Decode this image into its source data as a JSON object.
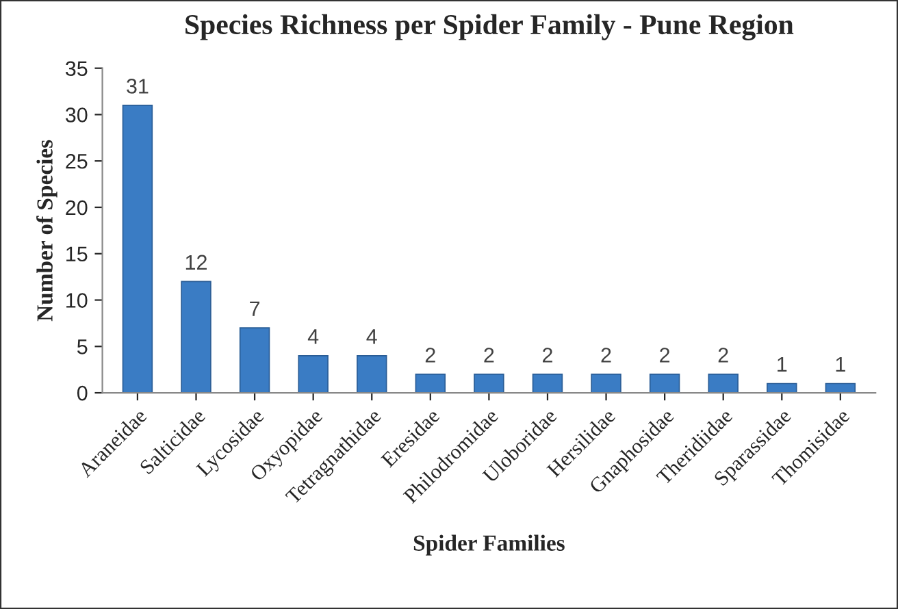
{
  "chart_data": {
    "type": "bar",
    "title": "Species Richness per Spider Family - Pune Region",
    "xlabel": "Spider Families",
    "ylabel": "Number of Species",
    "categories": [
      "Araneidae",
      "Salticidae",
      "Lycosidae",
      "Oxyopidae",
      "Tetragnathidae",
      "Eresidae",
      "Philodromidae",
      "Uloboridae",
      "Hersilidae",
      "Gnaphosidae",
      "Theridiidae",
      "Sparassidae",
      "Thomisidae"
    ],
    "values": [
      31,
      12,
      7,
      4,
      4,
      2,
      2,
      2,
      2,
      2,
      2,
      1,
      1
    ],
    "color": "#3a7cc4",
    "ylim": [
      0,
      35
    ],
    "yticks": [
      0,
      5,
      10,
      15,
      20,
      25,
      30,
      35
    ],
    "data_labels": true,
    "grid": false,
    "legend": false
  }
}
